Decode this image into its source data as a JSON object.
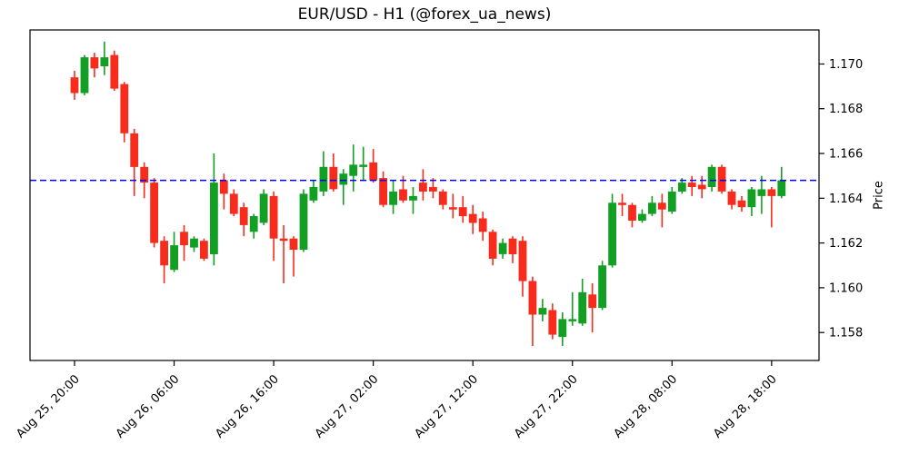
{
  "chart_data": {
    "type": "candlestick",
    "title": "EUR/USD - H1 (@forex_ua_news)",
    "ylabel": "Price",
    "xlabel": "",
    "grid": false,
    "legend": null,
    "up_color": "#12a024",
    "down_color": "#f92b1d",
    "axis_color": "#000000",
    "background_color": "#ffffff",
    "ylim": [
      1.15675,
      1.17152
    ],
    "y_ticks": [
      "1.170",
      "1.168",
      "1.166",
      "1.164",
      "1.162",
      "1.160",
      "1.158"
    ],
    "x_tick_labels": [
      "Aug 25, 20:00",
      "Aug 26, 06:00",
      "Aug 26, 16:00",
      "Aug 27, 02:00",
      "Aug 27, 12:00",
      "Aug 27, 22:00",
      "Aug 28, 08:00",
      "Aug 28, 18:00"
    ],
    "x_tick_indices": [
      0,
      10,
      20,
      30,
      40,
      50,
      60,
      70
    ],
    "hline": {
      "value": 1.1648,
      "color": "#0000ee",
      "style": "dashed"
    },
    "candles": [
      {
        "time": "Aug 25, 20:00",
        "open": 1.1694,
        "high": 1.1697,
        "low": 1.1684,
        "close": 1.1687
      },
      {
        "time": "Aug 25, 21:00",
        "open": 1.1687,
        "high": 1.1704,
        "low": 1.1686,
        "close": 1.1703
      },
      {
        "time": "Aug 25, 22:00",
        "open": 1.1703,
        "high": 1.1705,
        "low": 1.1694,
        "close": 1.1698
      },
      {
        "time": "Aug 25, 23:00",
        "open": 1.1699,
        "high": 1.171,
        "low": 1.1695,
        "close": 1.1703
      },
      {
        "time": "Aug 26, 00:00",
        "open": 1.1704,
        "high": 1.1706,
        "low": 1.1688,
        "close": 1.1689
      },
      {
        "time": "Aug 26, 01:00",
        "open": 1.1691,
        "high": 1.1692,
        "low": 1.1665,
        "close": 1.1669
      },
      {
        "time": "Aug 26, 02:00",
        "open": 1.1669,
        "high": 1.1671,
        "low": 1.1641,
        "close": 1.1654
      },
      {
        "time": "Aug 26, 03:00",
        "open": 1.1654,
        "high": 1.1656,
        "low": 1.164,
        "close": 1.1647
      },
      {
        "time": "Aug 26, 04:00",
        "open": 1.1647,
        "high": 1.1649,
        "low": 1.1618,
        "close": 1.162
      },
      {
        "time": "Aug 26, 05:00",
        "open": 1.1621,
        "high": 1.1623,
        "low": 1.1602,
        "close": 1.161
      },
      {
        "time": "Aug 26, 06:00",
        "open": 1.1608,
        "high": 1.1625,
        "low": 1.1607,
        "close": 1.1619
      },
      {
        "time": "Aug 26, 07:00",
        "open": 1.1625,
        "high": 1.1628,
        "low": 1.1612,
        "close": 1.1619
      },
      {
        "time": "Aug 26, 08:00",
        "open": 1.1618,
        "high": 1.1623,
        "low": 1.1616,
        "close": 1.1622
      },
      {
        "time": "Aug 26, 09:00",
        "open": 1.1621,
        "high": 1.1622,
        "low": 1.1612,
        "close": 1.1613
      },
      {
        "time": "Aug 26, 10:00",
        "open": 1.1615,
        "high": 1.166,
        "low": 1.161,
        "close": 1.1647
      },
      {
        "time": "Aug 26, 11:00",
        "open": 1.1648,
        "high": 1.1651,
        "low": 1.1635,
        "close": 1.1642
      },
      {
        "time": "Aug 26, 12:00",
        "open": 1.1642,
        "high": 1.1644,
        "low": 1.1632,
        "close": 1.1633
      },
      {
        "time": "Aug 26, 13:00",
        "open": 1.1636,
        "high": 1.1638,
        "low": 1.1623,
        "close": 1.1628
      },
      {
        "time": "Aug 26, 14:00",
        "open": 1.1625,
        "high": 1.1633,
        "low": 1.1622,
        "close": 1.1632
      },
      {
        "time": "Aug 26, 15:00",
        "open": 1.1629,
        "high": 1.1644,
        "low": 1.1628,
        "close": 1.1642
      },
      {
        "time": "Aug 26, 16:00",
        "open": 1.1641,
        "high": 1.1643,
        "low": 1.1612,
        "close": 1.1622
      },
      {
        "time": "Aug 26, 17:00",
        "open": 1.1622,
        "high": 1.1628,
        "low": 1.1602,
        "close": 1.1621
      },
      {
        "time": "Aug 26, 18:00",
        "open": 1.1622,
        "high": 1.1623,
        "low": 1.1605,
        "close": 1.1617
      },
      {
        "time": "Aug 26, 19:00",
        "open": 1.1617,
        "high": 1.1644,
        "low": 1.1616,
        "close": 1.1642
      },
      {
        "time": "Aug 26, 20:00",
        "open": 1.1639,
        "high": 1.1648,
        "low": 1.1638,
        "close": 1.1645
      },
      {
        "time": "Aug 26, 21:00",
        "open": 1.1643,
        "high": 1.1661,
        "low": 1.1641,
        "close": 1.1654
      },
      {
        "time": "Aug 26, 22:00",
        "open": 1.1654,
        "high": 1.166,
        "low": 1.1643,
        "close": 1.1644
      },
      {
        "time": "Aug 26, 23:00",
        "open": 1.1646,
        "high": 1.1653,
        "low": 1.1637,
        "close": 1.1651
      },
      {
        "time": "Aug 27, 00:00",
        "open": 1.165,
        "high": 1.1664,
        "low": 1.1643,
        "close": 1.1655
      },
      {
        "time": "Aug 27, 01:00",
        "open": 1.1654,
        "high": 1.1663,
        "low": 1.1648,
        "close": 1.1655
      },
      {
        "time": "Aug 27, 02:00",
        "open": 1.1656,
        "high": 1.1662,
        "low": 1.1647,
        "close": 1.1648
      },
      {
        "time": "Aug 27, 03:00",
        "open": 1.1649,
        "high": 1.1652,
        "low": 1.1636,
        "close": 1.1637
      },
      {
        "time": "Aug 27, 04:00",
        "open": 1.1637,
        "high": 1.1648,
        "low": 1.1633,
        "close": 1.1643
      },
      {
        "time": "Aug 27, 05:00",
        "open": 1.1644,
        "high": 1.165,
        "low": 1.1638,
        "close": 1.1639
      },
      {
        "time": "Aug 27, 06:00",
        "open": 1.1639,
        "high": 1.1645,
        "low": 1.1633,
        "close": 1.1641
      },
      {
        "time": "Aug 27, 07:00",
        "open": 1.1647,
        "high": 1.1653,
        "low": 1.1639,
        "close": 1.1643
      },
      {
        "time": "Aug 27, 08:00",
        "open": 1.1645,
        "high": 1.1649,
        "low": 1.164,
        "close": 1.1643
      },
      {
        "time": "Aug 27, 09:00",
        "open": 1.1643,
        "high": 1.1644,
        "low": 1.1635,
        "close": 1.1637
      },
      {
        "time": "Aug 27, 10:00",
        "open": 1.1636,
        "high": 1.1642,
        "low": 1.1631,
        "close": 1.1635
      },
      {
        "time": "Aug 27, 11:00",
        "open": 1.1636,
        "high": 1.1641,
        "low": 1.1629,
        "close": 1.1632
      },
      {
        "time": "Aug 27, 12:00",
        "open": 1.1633,
        "high": 1.1637,
        "low": 1.1624,
        "close": 1.1629
      },
      {
        "time": "Aug 27, 13:00",
        "open": 1.1631,
        "high": 1.1634,
        "low": 1.1621,
        "close": 1.1625
      },
      {
        "time": "Aug 27, 14:00",
        "open": 1.1625,
        "high": 1.1626,
        "low": 1.161,
        "close": 1.1613
      },
      {
        "time": "Aug 27, 15:00",
        "open": 1.1615,
        "high": 1.1622,
        "low": 1.1613,
        "close": 1.162
      },
      {
        "time": "Aug 27, 16:00",
        "open": 1.1622,
        "high": 1.1623,
        "low": 1.1611,
        "close": 1.1615
      },
      {
        "time": "Aug 27, 17:00",
        "open": 1.1621,
        "high": 1.1623,
        "low": 1.1596,
        "close": 1.1603
      },
      {
        "time": "Aug 27, 18:00",
        "open": 1.1603,
        "high": 1.1605,
        "low": 1.1574,
        "close": 1.1588
      },
      {
        "time": "Aug 27, 19:00",
        "open": 1.1588,
        "high": 1.1595,
        "low": 1.1585,
        "close": 1.1591
      },
      {
        "time": "Aug 27, 20:00",
        "open": 1.159,
        "high": 1.1593,
        "low": 1.1577,
        "close": 1.1579
      },
      {
        "time": "Aug 27, 21:00",
        "open": 1.1578,
        "high": 1.1589,
        "low": 1.1574,
        "close": 1.1586
      },
      {
        "time": "Aug 27, 22:00",
        "open": 1.1585,
        "high": 1.1598,
        "low": 1.1583,
        "close": 1.1586
      },
      {
        "time": "Aug 27, 23:00",
        "open": 1.1584,
        "high": 1.1604,
        "low": 1.1583,
        "close": 1.1598
      },
      {
        "time": "Aug 28, 00:00",
        "open": 1.1597,
        "high": 1.1602,
        "low": 1.158,
        "close": 1.1591
      },
      {
        "time": "Aug 28, 01:00",
        "open": 1.1591,
        "high": 1.1612,
        "low": 1.159,
        "close": 1.161
      },
      {
        "time": "Aug 28, 02:00",
        "open": 1.161,
        "high": 1.1642,
        "low": 1.1609,
        "close": 1.1638
      },
      {
        "time": "Aug 28, 03:00",
        "open": 1.1638,
        "high": 1.1642,
        "low": 1.1632,
        "close": 1.1637
      },
      {
        "time": "Aug 28, 04:00",
        "open": 1.1637,
        "high": 1.1638,
        "low": 1.1627,
        "close": 1.163
      },
      {
        "time": "Aug 28, 05:00",
        "open": 1.163,
        "high": 1.1635,
        "low": 1.1629,
        "close": 1.1633
      },
      {
        "time": "Aug 28, 06:00",
        "open": 1.1633,
        "high": 1.1641,
        "low": 1.1632,
        "close": 1.1638
      },
      {
        "time": "Aug 28, 07:00",
        "open": 1.1638,
        "high": 1.1642,
        "low": 1.1627,
        "close": 1.1635
      },
      {
        "time": "Aug 28, 08:00",
        "open": 1.1634,
        "high": 1.1645,
        "low": 1.1633,
        "close": 1.1643
      },
      {
        "time": "Aug 28, 09:00",
        "open": 1.1643,
        "high": 1.1649,
        "low": 1.1642,
        "close": 1.1647
      },
      {
        "time": "Aug 28, 10:00",
        "open": 1.1647,
        "high": 1.165,
        "low": 1.1641,
        "close": 1.1645
      },
      {
        "time": "Aug 28, 11:00",
        "open": 1.1646,
        "high": 1.165,
        "low": 1.164,
        "close": 1.1644
      },
      {
        "time": "Aug 28, 12:00",
        "open": 1.1645,
        "high": 1.1655,
        "low": 1.1643,
        "close": 1.1654
      },
      {
        "time": "Aug 28, 13:00",
        "open": 1.1654,
        "high": 1.1655,
        "low": 1.1642,
        "close": 1.1643
      },
      {
        "time": "Aug 28, 14:00",
        "open": 1.1643,
        "high": 1.1644,
        "low": 1.1635,
        "close": 1.1637
      },
      {
        "time": "Aug 28, 15:00",
        "open": 1.1639,
        "high": 1.1641,
        "low": 1.1634,
        "close": 1.1636
      },
      {
        "time": "Aug 28, 16:00",
        "open": 1.1636,
        "high": 1.1645,
        "low": 1.1632,
        "close": 1.1644
      },
      {
        "time": "Aug 28, 17:00",
        "open": 1.1641,
        "high": 1.165,
        "low": 1.1633,
        "close": 1.1644
      },
      {
        "time": "Aug 28, 18:00",
        "open": 1.1644,
        "high": 1.1645,
        "low": 1.1627,
        "close": 1.1641
      },
      {
        "time": "Aug 28, 19:00",
        "open": 1.1641,
        "high": 1.1654,
        "low": 1.164,
        "close": 1.1648
      }
    ]
  }
}
